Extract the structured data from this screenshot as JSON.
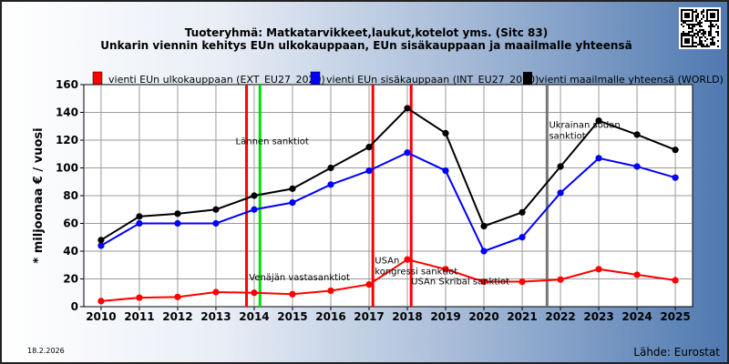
{
  "chart_data": {
    "type": "line",
    "title": "Tuoteryhmä: Matkatarvikkeet,laukut,kotelot yms. (Sitc 83)",
    "subtitle": "Unkarin viennin kehitys EUn ulkokauppaan, EUn sisäkauppaan ja maailmalle yhteensä",
    "ylabel": "* miljoonaa € / vuosi",
    "xlabel": "",
    "ylim": [
      0,
      160
    ],
    "yticks": [
      0,
      20,
      40,
      60,
      80,
      100,
      120,
      140,
      160
    ],
    "grid": true,
    "legend_position": "top",
    "x": [
      2010,
      2011,
      2012,
      2013,
      2014,
      2015,
      2016,
      2017,
      2018,
      2019,
      2020,
      2021,
      2022,
      2023,
      2024,
      2025
    ],
    "series": [
      {
        "name": "vienti EUn ulkokauppaan (EXT_EU27_2020)",
        "color": "#ff0000",
        "values": [
          4,
          6.5,
          7,
          10.5,
          10,
          9,
          11.5,
          16,
          34,
          27,
          18,
          18,
          19.5,
          27,
          23,
          19
        ]
      },
      {
        "name": "vienti EUn sisäkauppaan (INT_EU27_2020)",
        "color": "#0000ff",
        "values": [
          44,
          60,
          60,
          60,
          70,
          75,
          88,
          98,
          111,
          98,
          40,
          50,
          82,
          107,
          101,
          93
        ]
      },
      {
        "name": "vienti maailmalle yhteensä (WORLD)",
        "color": "#000000",
        "values": [
          48,
          65,
          67,
          70,
          80,
          85,
          100,
          115,
          143,
          125,
          58,
          68,
          101,
          134,
          124,
          113
        ]
      }
    ],
    "events": [
      {
        "x": 2013.8,
        "color": "#ff0000",
        "label": "Lännen sanktiot",
        "label_y": 117
      },
      {
        "x": 2014.15,
        "color": "#00dd00",
        "label": "Venäjän vastasanktiot",
        "label_y": 19
      },
      {
        "x": 2017.1,
        "color": "#ff0000",
        "label": "",
        "label_y": 0
      },
      {
        "x": 2018.1,
        "color": "#ff0000",
        "label": "",
        "label_y": 0
      },
      {
        "x": 2021.65,
        "color": "#777777",
        "label": "",
        "label_y": 0
      }
    ],
    "annotations": [
      {
        "lines": [
          "USAn",
          "kongressi sanktiot"
        ],
        "x": 2017.15,
        "y": 31
      },
      {
        "lines": [
          "USAn Skribal sanktiot"
        ],
        "x": 2018.1,
        "y": 16
      },
      {
        "lines": [
          "Ukrainan sodan",
          "sanktiot"
        ],
        "x": 2021.7,
        "y": 129
      }
    ]
  },
  "date_label": "18.2.2026",
  "source_label": "Lähde: Eurostat"
}
